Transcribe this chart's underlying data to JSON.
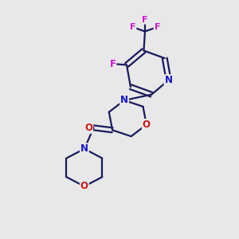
{
  "bg_color": "#e8e8e8",
  "bond_color": "#1a1a5e",
  "bond_width": 1.6,
  "atom_colors": {
    "N": "#1515cc",
    "O": "#cc1515",
    "F": "#cc15cc"
  },
  "font_size": 8.5
}
